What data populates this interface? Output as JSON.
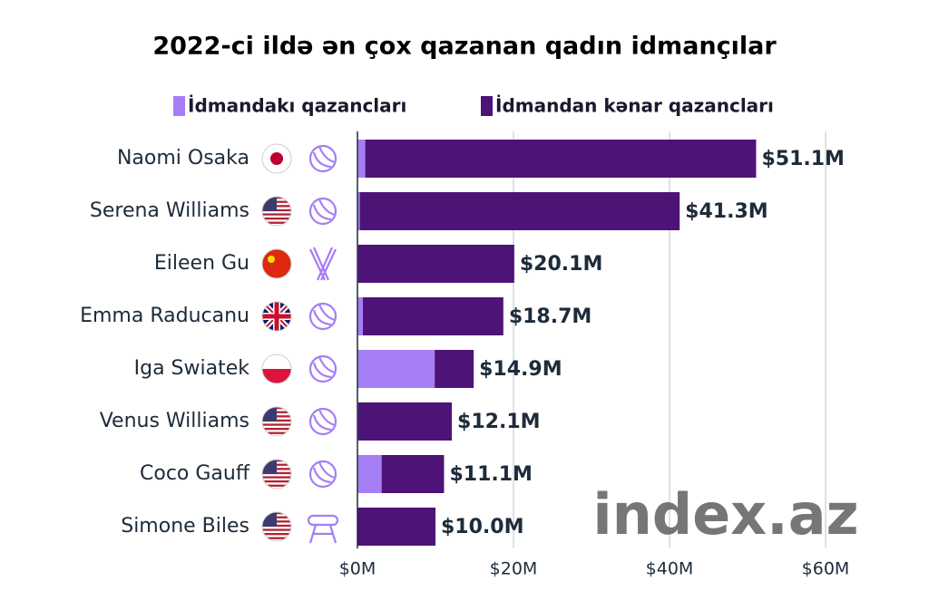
{
  "chart_data": {
    "type": "stacked-bar-horizontal",
    "title": "2022-ci ildə ən çox qazanan qadın idmançılar",
    "categories": [
      "Naomi Osaka",
      "Serena Williams",
      "Eileen Gu",
      "Emma Raducanu",
      "Iga Swiatek",
      "Venus Williams",
      "Coco Gauff",
      "Simone Biles"
    ],
    "series": [
      {
        "name": "İdmandakı qazancları",
        "color": "#a57ef5",
        "values": [
          1.0,
          0.3,
          0.1,
          0.7,
          9.9,
          0.1,
          3.1,
          0
        ]
      },
      {
        "name": "İdmandan kənar qazancları",
        "color": "#4e1377",
        "values": [
          50.1,
          41.0,
          20.0,
          18.0,
          5.0,
          12.0,
          8.0,
          10.0
        ]
      }
    ],
    "totals": {
      "values": [
        51.1,
        41.3,
        20.1,
        18.7,
        14.9,
        12.1,
        11.1,
        10.0
      ],
      "value_labels": [
        "$51.1M",
        "$41.3M",
        "$20.1M",
        "$18.7M",
        "$14.9M",
        "$12.1M",
        "$11.1M",
        "$10.0M"
      ]
    },
    "xlim": [
      0,
      60
    ],
    "xticks": [
      {
        "value": 0,
        "label": "$0M"
      },
      {
        "value": 20,
        "label": "$20M"
      },
      {
        "value": 40,
        "label": "$40M"
      },
      {
        "value": 60,
        "label": "$60M"
      }
    ],
    "grid": true
  },
  "watermark": "index.az"
}
